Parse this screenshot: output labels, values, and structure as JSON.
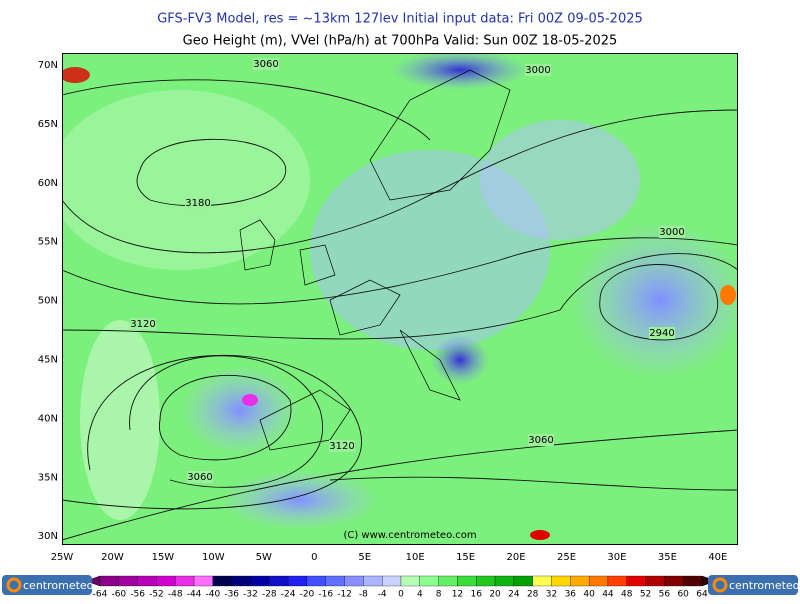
{
  "header": {
    "line1": "GFS-FV3 Model, res = ~13km 127lev    Initial input data: Fri 00Z 09-05-2025",
    "line2": "Geo Height (m), VVel (hPa/h) at 700hPa  Valid: Sun 00Z 18-05-2025"
  },
  "map": {
    "lat_labels": [
      "70N",
      "65N",
      "60N",
      "55N",
      "50N",
      "45N",
      "40N",
      "35N",
      "30N"
    ],
    "lon_labels": [
      "25W",
      "20W",
      "15W",
      "10W",
      "5W",
      "0",
      "5E",
      "10E",
      "15E",
      "20E",
      "25E",
      "30E",
      "35E",
      "40E"
    ],
    "contour_labels": [
      "3060",
      "3000",
      "3180",
      "3000",
      "3120",
      "2940",
      "3120",
      "3060",
      "3060"
    ],
    "credit": "(C) www.centrometeo.com"
  },
  "colorbar": {
    "labels": [
      "-64",
      "-60",
      "-56",
      "-52",
      "-48",
      "-44",
      "-40",
      "-36",
      "-32",
      "-28",
      "-24",
      "-20",
      "-16",
      "-12",
      "-8",
      "-4",
      "0",
      "4",
      "8",
      "12",
      "16",
      "20",
      "24",
      "28",
      "32",
      "36",
      "40",
      "44",
      "48",
      "52",
      "56",
      "60",
      "64"
    ],
    "colors": [
      "#6a006a",
      "#8a008a",
      "#a000a0",
      "#b800b8",
      "#d000d0",
      "#e830e8",
      "#ff70ff",
      "#000050",
      "#00007a",
      "#0000a0",
      "#1010c8",
      "#2020f0",
      "#4050ff",
      "#6070ff",
      "#8890ff",
      "#aab4ff",
      "#ccd2ff",
      "#b4ffb4",
      "#8cff8c",
      "#64f064",
      "#3cdc3c",
      "#20c820",
      "#10b410",
      "#00a000",
      "#ffff50",
      "#ffd700",
      "#ffaa00",
      "#ff7800",
      "#ff4000",
      "#e00000",
      "#b00000",
      "#800000",
      "#500000",
      "#300000"
    ],
    "logo": "centrometeo"
  }
}
